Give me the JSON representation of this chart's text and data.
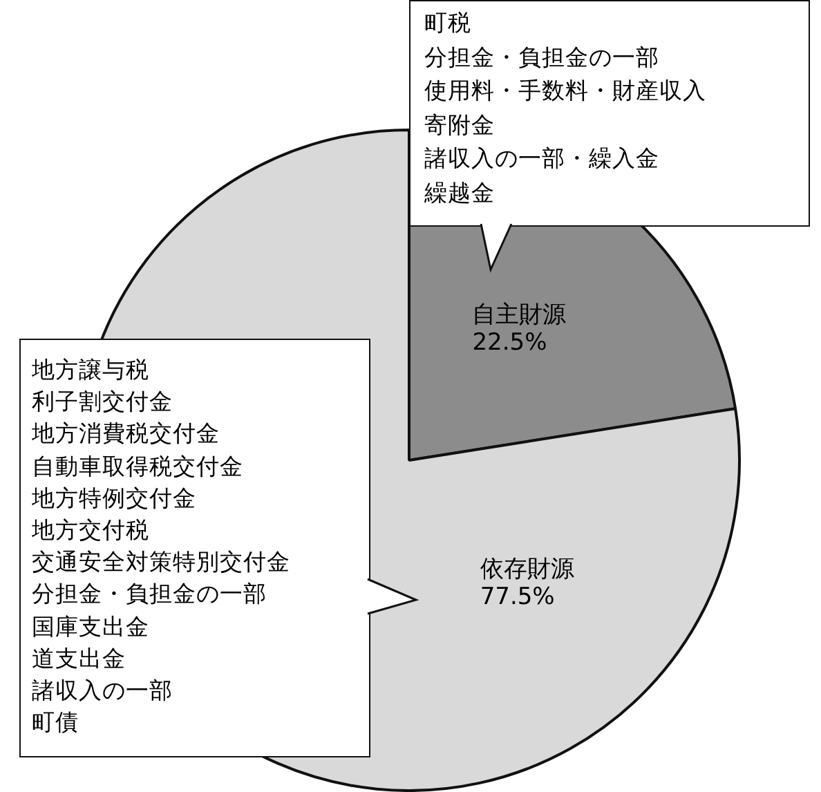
{
  "chart_data": {
    "type": "pie",
    "categories": [
      "自主財源",
      "依存財源"
    ],
    "values": [
      22.5,
      77.5
    ],
    "value_labels": [
      "22.5%",
      "77.5%"
    ],
    "colors": [
      "#8c8c8c",
      "#d9d9d9"
    ],
    "annotations": [
      "町税",
      "分担金・負担金の一部",
      "使用料・手数料・財産収入",
      "寄附金",
      "諸収入の一部・繰入金",
      "繰越金",
      "地方譲与税",
      "利子割交付金",
      "地方消費税交付金",
      "自動車取得税交付金",
      "地方特例交付金",
      "地方交付税",
      "交通安全対策特別交付金",
      "分担金・負担金の一部",
      "国庫支出金",
      "道支出金",
      "諸収入の一部",
      "町債"
    ]
  }
}
